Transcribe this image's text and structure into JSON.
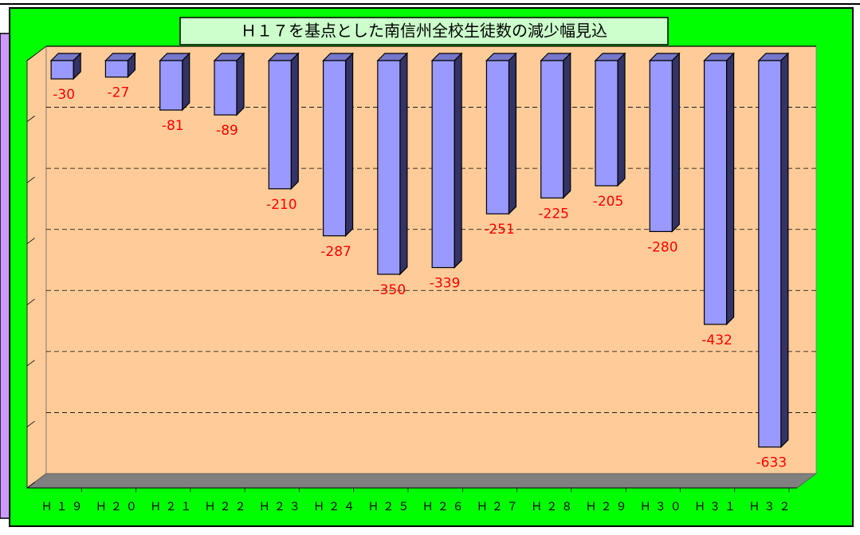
{
  "chart_data": {
    "type": "bar3d",
    "title": "Ｈ１７を基点とした南信州全校生徒数の減少幅見込",
    "categories": [
      "Ｈ１９",
      "Ｈ２０",
      "Ｈ２１",
      "Ｈ２２",
      "Ｈ２３",
      "Ｈ２４",
      "Ｈ２５",
      "Ｈ２６",
      "Ｈ２７",
      "Ｈ２８",
      "Ｈ２９",
      "Ｈ３０",
      "Ｈ３１",
      "Ｈ３２"
    ],
    "values": [
      -30,
      -27,
      -81,
      -89,
      -210,
      -287,
      -350,
      -339,
      -251,
      -225,
      -205,
      -280,
      -432,
      -633
    ],
    "color": "#9999ff",
    "ylim": [
      -700,
      0
    ],
    "yticks": [
      -700,
      -600,
      -500,
      -400,
      -300,
      -200,
      -100,
      0
    ],
    "grid": true
  }
}
